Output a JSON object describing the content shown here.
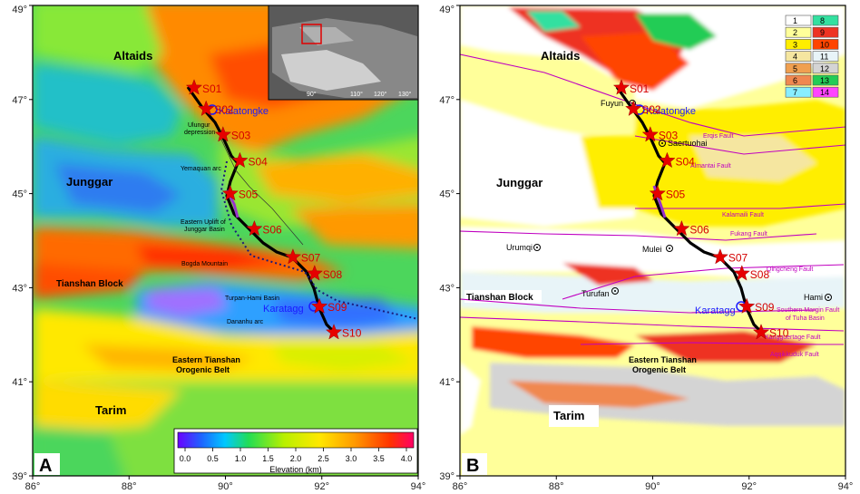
{
  "axes": {
    "lon_labels": [
      "86°",
      "88°",
      "90°",
      "92°",
      "94°"
    ],
    "lat_labels": [
      "49°",
      "47°",
      "45°",
      "43°",
      "41°",
      "39°"
    ]
  },
  "panel_a": {
    "label": "A",
    "regions": {
      "altaids": "Altaids",
      "junggar": "Junggar",
      "tianshan": "Tianshan Block",
      "tarim": "Tarim",
      "eastern_tianshan_1": "Eastern Tianshan",
      "eastern_tianshan_2": "Orogenic Belt"
    },
    "features": {
      "ulungur_1": "Ulungur",
      "ulungur_2": "depression",
      "yemaquan": "Yemaquan arc",
      "eastern_uplift_1": "Eastern Uplift of",
      "eastern_uplift_2": "Junggar Basin",
      "bogda": "Bogda Mountain",
      "turpan": "Turpan-Hami Basin",
      "dananhu": "Dananhu arc"
    },
    "kalatongke": "Kalatongke",
    "karatagg": "Karatagg",
    "inset_ticks": [
      "90°",
      "110°",
      "120°",
      "130°"
    ],
    "colorbar": {
      "ticks": [
        "0.0",
        "0.5",
        "1.0",
        "1.5",
        "2.0",
        "2.5",
        "3.0",
        "3.5",
        "4.0"
      ],
      "title": "Elevation (km)"
    }
  },
  "panel_b": {
    "label": "B",
    "regions": {
      "altaids": "Altaids",
      "junggar": "Junggar",
      "tianshan": "Tianshan Block",
      "tarim": "Tarim",
      "eastern_tianshan_1": "Eastern Tianshan",
      "eastern_tianshan_2": "Orogenic Belt"
    },
    "kalatongke": "Kalatongke",
    "karatagg": "Karatagg",
    "cities": {
      "fuyun": "Fuyun",
      "saertuohai": "Saertuohai",
      "urumqi": "Urumqi",
      "mulei": "Mulei",
      "turufan": "Turufan",
      "hami": "Hami"
    },
    "faults": {
      "erqis": "Erqis Fault",
      "almantai": "Almantai Fault",
      "kalamaili": "Kalamaili Fault",
      "fukang": "Fukang Fault",
      "qingcheng": "Qingcheng Fault",
      "southern_margin_1": "Southern Margin Fault",
      "southern_margin_2": "of Tuha Basin",
      "kangguertage": "Kangguertage Fault",
      "aqqikkuduk": "Aqqikkuduk Fault"
    },
    "legend": [
      {
        "n": "1",
        "color": "#ffffff"
      },
      {
        "n": "8",
        "color": "#33e0a0"
      },
      {
        "n": "2",
        "color": "#ffff9a"
      },
      {
        "n": "9",
        "color": "#ee3322"
      },
      {
        "n": "3",
        "color": "#ffee00"
      },
      {
        "n": "10",
        "color": "#ff4400"
      },
      {
        "n": "4",
        "color": "#f5e6a0"
      },
      {
        "n": "11",
        "color": "#e8f4f8"
      },
      {
        "n": "5",
        "color": "#f0a050"
      },
      {
        "n": "12",
        "color": "#d4d4d4"
      },
      {
        "n": "6",
        "color": "#f08850"
      },
      {
        "n": "13",
        "color": "#22cc55"
      },
      {
        "n": "7",
        "color": "#88eeff"
      },
      {
        "n": "14",
        "color": "#ff44ff"
      }
    ]
  },
  "stations": [
    {
      "id": "S01",
      "lon": 89.35,
      "lat": 47.25
    },
    {
      "id": "S02",
      "lon": 89.6,
      "lat": 46.8
    },
    {
      "id": "S03",
      "lon": 89.95,
      "lat": 46.25
    },
    {
      "id": "S04",
      "lon": 90.3,
      "lat": 45.7
    },
    {
      "id": "S05",
      "lon": 90.1,
      "lat": 45.0
    },
    {
      "id": "S06",
      "lon": 90.6,
      "lat": 44.25
    },
    {
      "id": "S07",
      "lon": 91.4,
      "lat": 43.65
    },
    {
      "id": "S08",
      "lon": 91.85,
      "lat": 43.3
    },
    {
      "id": "S09",
      "lon": 91.95,
      "lat": 42.6
    },
    {
      "id": "S10",
      "lon": 92.25,
      "lat": 42.05
    }
  ],
  "colors": {
    "station": "#e60000",
    "profile": "#000000",
    "route_highlight": "#9933cc",
    "fault": "#c000c0"
  }
}
